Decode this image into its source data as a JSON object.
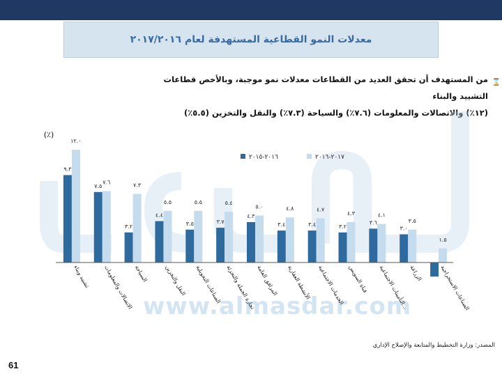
{
  "header": {
    "title": "معدلات النمو القطاعية المستهدفة لعام ٢٠١٧/٢٠١٦"
  },
  "bullet": {
    "line1": "من المستهدف أن تحقق العديد من القطاعات معدلات نمو موجبة، وبالأخص قطاعات التشييد والبناء",
    "line2": "(١٢٪) والاتصالات والمعلومات (٧.٦٪) والسياحة (٧.٣٪) والنقل والتخزين (٥.٥٪)"
  },
  "watermark": {
    "url": "www.almasdar.com"
  },
  "footer": {
    "source": "المصدر: وزارة التخطيط والمتابعة والإصلاح الإداري",
    "page_number": "61"
  },
  "chart_data": {
    "type": "bar",
    "unit_label": "(٪)",
    "categories": [
      "تشييد وبناء",
      "الاتصالات والمعلومات",
      "السياحة",
      "النقل والتخزين",
      "الصناعات التحويلية",
      "تجارة الجملة والتجزئة",
      "المرافق العامة",
      "الأنشطة العقارية",
      "الخدمات الاجتماعية",
      "قناة السويس",
      "التأمينات الاجتماعية...",
      "الزراعة",
      "الصناعات الاستخراجية"
    ],
    "series": [
      {
        "name": "٢٠١٦-٢٠١٥",
        "values": [
          9.3,
          7.5,
          3.2,
          4.4,
          3.5,
          3.7,
          4.3,
          3.4,
          3.4,
          3.2,
          3.6,
          3.0,
          -1.5
        ],
        "labels": [
          "٩.٣",
          "٧.٥",
          "٣.٢",
          "٤.٤",
          "٣.٥",
          "٣.٧",
          "٤.٣",
          "٣.٤",
          "٣.٤",
          "٣.٢",
          "٣.٦",
          "٣.٠",
          ""
        ]
      },
      {
        "name": "٢٠١٧-٢٠١٦",
        "values": [
          12.0,
          7.6,
          7.3,
          5.5,
          5.5,
          5.4,
          5.0,
          4.8,
          4.7,
          4.3,
          4.1,
          3.5,
          1.5
        ],
        "labels": [
          "١٢.٠",
          "٧.٦",
          "٧.٣",
          "٥.٥",
          "٥.٥",
          "٥.٤",
          "٥.٠",
          "٤.٨",
          "٤.٧",
          "٤.٣",
          "٤.١",
          "٣.٥",
          "١.٥"
        ]
      }
    ],
    "colors": [
      "#2e6a9e",
      "#c4dcee"
    ],
    "ylim": [
      -2,
      13
    ],
    "legend_position": "top-right",
    "grid": false
  }
}
